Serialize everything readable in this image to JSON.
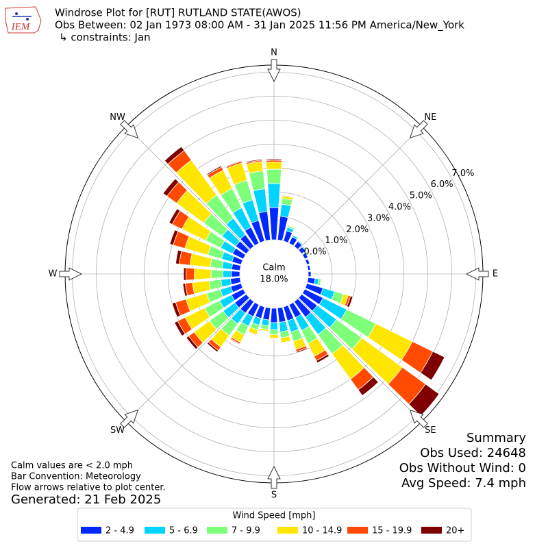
{
  "header": {
    "logo": "IEM",
    "title": "Windrose Plot for [RUT] RUTLAND STATE(AWOS)",
    "subtitle": "Obs Between: 02 Jan 1973 08:00 AM - 31 Jan 2025 11:56 PM America/New_York",
    "constraints": "↳ constraints: Jan"
  },
  "chart_data": {
    "type": "windrose",
    "x": [
      0,
      10,
      20,
      30,
      40,
      50,
      60,
      70,
      80,
      90,
      100,
      110,
      120,
      130,
      140,
      150,
      160,
      170,
      180,
      190,
      200,
      210,
      220,
      230,
      240,
      250,
      260,
      270,
      280,
      290,
      300,
      310,
      320,
      330,
      340,
      350
    ],
    "xticks": [
      {
        "value": 0,
        "label": "N"
      },
      {
        "value": 45,
        "label": "NE"
      },
      {
        "value": 90,
        "label": "E"
      },
      {
        "value": 135,
        "label": "SE"
      },
      {
        "value": 180,
        "label": "S"
      },
      {
        "value": 225,
        "label": "SW"
      },
      {
        "value": 270,
        "label": "W"
      },
      {
        "value": 315,
        "label": "NW"
      }
    ],
    "ylim": [
      0,
      7.3
    ],
    "yticks": [
      {
        "value": 0,
        "label": "0.0%"
      },
      {
        "value": 1,
        "label": "1.0%"
      },
      {
        "value": 2,
        "label": "2.0%"
      },
      {
        "value": 3,
        "label": "3.0%"
      },
      {
        "value": 4,
        "label": "4.0%"
      },
      {
        "value": 5,
        "label": "5.0%"
      },
      {
        "value": 6,
        "label": "6.0%"
      },
      {
        "value": 7,
        "label": "7.0%"
      }
    ],
    "grid": true,
    "calm": {
      "label": "Calm",
      "value": 18,
      "value_label": "18.0%"
    },
    "legend_title": "Wind Speed [mph]",
    "series": [
      {
        "name": "2 - 4.9",
        "color": "#0028ff",
        "values": [
          1.35,
          1.0,
          0.45,
          0.3,
          0.25,
          0.2,
          0.15,
          0.12,
          0.1,
          0.12,
          0.3,
          0.7,
          0.85,
          0.8,
          0.8,
          0.6,
          0.6,
          0.6,
          0.6,
          0.5,
          0.5,
          0.55,
          0.6,
          0.6,
          0.55,
          0.45,
          0.4,
          0.35,
          0.35,
          0.4,
          0.5,
          0.55,
          0.6,
          0.75,
          0.9,
          1.2
        ]
      },
      {
        "name": "5 - 6.9",
        "color": "#00d4ff",
        "values": [
          1.0,
          0.5,
          0.15,
          0.07,
          0.05,
          0.05,
          0.03,
          0.03,
          0,
          0.03,
          0.15,
          0.5,
          1.1,
          1.0,
          0.9,
          0.6,
          0.5,
          0.4,
          0.3,
          0.25,
          0.3,
          0.45,
          0.55,
          0.6,
          0.55,
          0.45,
          0.4,
          0.35,
          0.4,
          0.45,
          0.55,
          0.7,
          0.85,
          0.9,
          0.9,
          0.95
        ]
      },
      {
        "name": "7 - 9.9",
        "color": "#7dff7a",
        "values": [
          0.6,
          0.25,
          0.07,
          0.03,
          0,
          0,
          0,
          0,
          0,
          0,
          0.1,
          0.4,
          1.35,
          1.3,
          1.0,
          0.6,
          0.4,
          0.25,
          0.2,
          0.15,
          0.2,
          0.4,
          0.6,
          0.7,
          0.7,
          0.6,
          0.5,
          0.5,
          0.5,
          0.6,
          0.7,
          0.95,
          1.2,
          0.9,
          0.85,
          0.75
        ]
      },
      {
        "name": "10 - 14.9",
        "color": "#ffe600",
        "values": [
          0.3,
          0.1,
          0.03,
          0,
          0,
          0,
          0,
          0,
          0,
          0,
          0.03,
          0.2,
          1.7,
          2.1,
          1.3,
          0.6,
          0.35,
          0.2,
          0.15,
          0.08,
          0.2,
          0.35,
          0.6,
          0.8,
          0.9,
          0.9,
          0.7,
          0.7,
          0.85,
          1.0,
          1.1,
          1.4,
          1.8,
          0.85,
          0.75,
          0.4
        ]
      },
      {
        "name": "15 - 19.9",
        "color": "#ff4a00",
        "values": [
          0.07,
          0.03,
          0,
          0,
          0,
          0,
          0,
          0,
          0,
          0,
          0.01,
          0.1,
          0.95,
          1.2,
          0.55,
          0.2,
          0.1,
          0.03,
          0.03,
          0.01,
          0.03,
          0.07,
          0.17,
          0.28,
          0.35,
          0.45,
          0.3,
          0.35,
          0.45,
          0.5,
          0.45,
          0.5,
          0.5,
          0.15,
          0.07,
          0.06
        ]
      },
      {
        "name": "20+",
        "color": "#7f0000",
        "values": [
          0.05,
          0.02,
          0,
          0,
          0,
          0,
          0,
          0,
          0,
          0,
          0.01,
          0.1,
          0.55,
          0.7,
          0.3,
          0.1,
          0.05,
          0.02,
          0.02,
          0.01,
          0.02,
          0.03,
          0.08,
          0.12,
          0.15,
          0.15,
          0.1,
          0.1,
          0.15,
          0.15,
          0.15,
          0.2,
          0.2,
          0.05,
          0.03,
          0.04
        ]
      }
    ]
  },
  "notes": [
    "Calm values are < 2.0 mph",
    "Bar Convention: Meteorology",
    "Flow arrows relative to plot center."
  ],
  "generated": "Generated: 21 Feb 2025",
  "summary": [
    "Summary",
    "Obs Used: 24648",
    "Obs Without Wind: 0",
    "Avg Speed: 7.4 mph"
  ]
}
